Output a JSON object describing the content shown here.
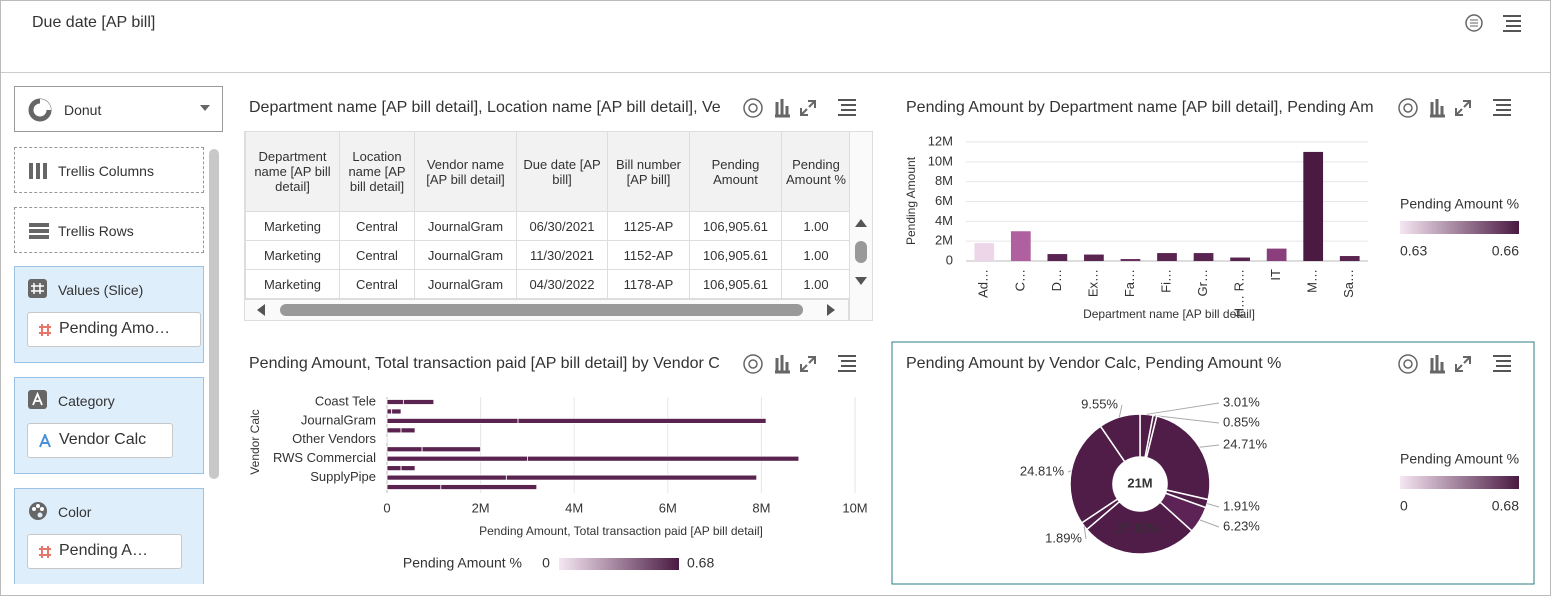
{
  "header": {
    "title": "Due date [AP bill]"
  },
  "sidebar": {
    "chart_type": "Donut",
    "drop_targets": [
      "Trellis Columns",
      "Trellis Rows"
    ],
    "sections": [
      {
        "title": "Values (Slice)",
        "item": "Pending Amo…"
      },
      {
        "title": "Category",
        "item": "Vendor Calc"
      },
      {
        "title": "Color",
        "item": "Pending A…"
      }
    ]
  },
  "table": {
    "title": "Department name [AP bill detail], Location name [AP bill detail], Ve",
    "columns": [
      "Department name [AP bill detail]",
      "Location name [AP bill detail]",
      "Vendor name [AP bill detail]",
      "Due date [AP bill]",
      "Bill number [AP bill]",
      "Pending Amount",
      "Pending Amount %"
    ],
    "rows": [
      [
        "Marketing",
        "Central",
        "JournalGram",
        "06/30/2021",
        "1125-AP",
        "106,905.61",
        "1.00"
      ],
      [
        "Marketing",
        "Central",
        "JournalGram",
        "11/30/2021",
        "1152-AP",
        "106,905.61",
        "1.00"
      ],
      [
        "Marketing",
        "Central",
        "JournalGram",
        "04/30/2022",
        "1178-AP",
        "106,905.61",
        "1.00"
      ]
    ]
  },
  "chart_data": [
    {
      "type": "bar",
      "title": "Pending Amount by Department name [AP bill detail], Pending Am",
      "x_label": "Department name [AP bill detail]",
      "y_label": "Pending Amount",
      "categories": [
        "Ad…",
        "C…",
        "D…",
        "Ex…",
        "Fa…",
        "Fi…",
        "Gr…",
        "H… R…",
        "IT",
        "M…",
        "Sa…"
      ],
      "values": [
        1800000,
        3000000,
        700000,
        650000,
        200000,
        800000,
        800000,
        350000,
        1250000,
        11000000,
        500000
      ],
      "colors": [
        "#ecd6e8",
        "#b0609f",
        "#5a2450",
        "#5a2450",
        "#6a3060",
        "#5a2450",
        "#5a2450",
        "#5a2450",
        "#8a3f7c",
        "#4a1a42",
        "#5a2450"
      ],
      "ylim": [
        0,
        12000000
      ],
      "yticks": [
        0,
        {
          "value": 2000000,
          "label": "2M"
        },
        {
          "value": 4000000,
          "label": "4M"
        },
        {
          "value": 6000000,
          "label": "6M"
        },
        {
          "value": 8000000,
          "label": "8M"
        },
        {
          "value": 10000000,
          "label": "10M"
        },
        {
          "value": 12000000,
          "label": "12M"
        }
      ],
      "grid": true,
      "legend": {
        "title": "Pending Amount %",
        "min": 0.63,
        "max": 0.66,
        "colors": [
          "#f5e6f2",
          "#4a1a42"
        ]
      }
    },
    {
      "type": "hbar",
      "title": "Pending Amount, Total transaction paid [AP bill detail] by Vendor C",
      "x_label": "Pending Amount, Total transaction paid [AP bill detail]",
      "y_label": "Vendor Calc",
      "categories": [
        "Coast Tele",
        null,
        "JournalGram",
        null,
        "Other Vendors",
        null,
        "RWS Commercial",
        null,
        "SupplyPipe",
        null
      ],
      "series": [
        {
          "color": "#5a2350",
          "values": [
            350000,
            100000,
            2800000,
            300000,
            20000,
            750000,
            3000000,
            300000,
            2550000,
            1150000
          ]
        },
        {
          "color": "#5a2350",
          "values": [
            650000,
            200000,
            5300000,
            300000,
            0,
            1250000,
            5800000,
            300000,
            5350000,
            2050000
          ]
        }
      ],
      "stacked": true,
      "xlim": [
        0,
        10000000
      ],
      "xticks": [
        0,
        {
          "value": 2000000,
          "label": "2M"
        },
        {
          "value": 4000000,
          "label": "4M"
        },
        {
          "value": 6000000,
          "label": "6M"
        },
        {
          "value": 8000000,
          "label": "8M"
        },
        {
          "value": 10000000,
          "label": "10M"
        }
      ],
      "grid": true,
      "legend": {
        "title": "Pending Amount %",
        "min": 0,
        "max": 0.68,
        "colors": [
          "#f5e6f2",
          "#4a1a42"
        ]
      }
    },
    {
      "type": "donut",
      "title": "Pending Amount by Vendor Calc, Pending Amount %",
      "center_label": "21M",
      "values": [
        3.01,
        0.85,
        24.71,
        1.91,
        6.23,
        27.03,
        1.89,
        24.81,
        9.55
      ],
      "value_labels": [
        "3.01%",
        "0.85%",
        "24.71%",
        "1.91%",
        "6.23%",
        "27.03%",
        "1.89%",
        "24.81%",
        "9.55%"
      ],
      "colors": [
        "#4f1d48",
        "#4f1d48",
        "#4f1d48",
        "#4f1d48",
        "#5e2356",
        "#4f1d48",
        "#4f1d48",
        "#4f1d48",
        "#4f1d48"
      ],
      "legend": {
        "title": "Pending Amount %",
        "min": 0,
        "max": 0.68,
        "colors": [
          "#f5e6f2",
          "#4a1a42"
        ]
      }
    }
  ]
}
